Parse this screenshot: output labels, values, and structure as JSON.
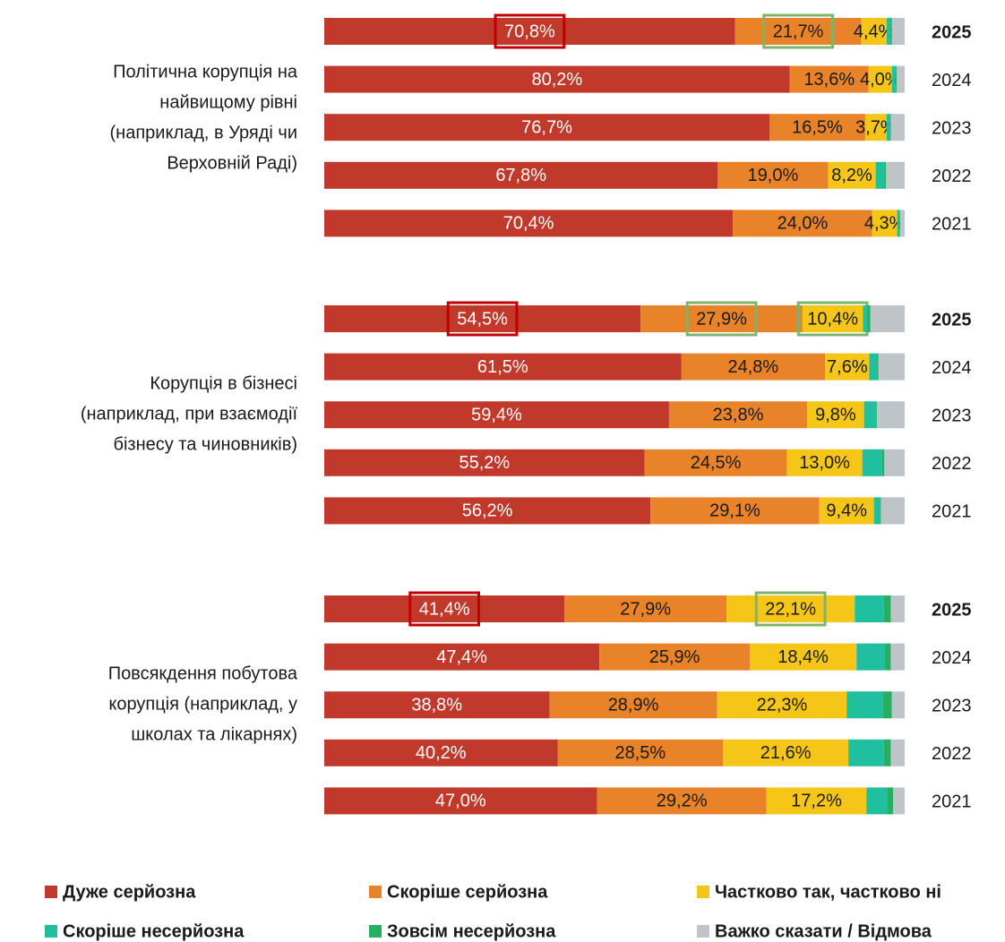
{
  "chart_data": {
    "type": "stacked-bar-horizontal",
    "groups": [
      {
        "label": [
          "Політична корупція на",
          "найвищому рівні",
          "(наприклад, в Уряді чи",
          "Верховній Раді)"
        ],
        "categories": [
          "2025",
          "2024",
          "2023",
          "2022",
          "2021"
        ]
      },
      {
        "label": [
          "Корупція в бізнесі",
          "(наприклад, при взаємодії",
          "бізнесу та чиновників)"
        ],
        "categories": [
          "2025",
          "2024",
          "2023",
          "2022",
          "2021"
        ]
      },
      {
        "label": [
          "Повсякдення побутова",
          "корупція (наприклад, у",
          "школах та лікарнях)"
        ],
        "categories": [
          "2025",
          "2024",
          "2023",
          "2022",
          "2021"
        ]
      }
    ],
    "xlim": [
      0,
      100
    ],
    "legend": "bottom",
    "series": [
      {
        "name": "Дуже серйозна",
        "color": "#c0392b",
        "values": [
          [
            70.8,
            80.2,
            76.7,
            67.8,
            70.4
          ],
          [
            54.5,
            61.5,
            59.4,
            55.2,
            56.2
          ],
          [
            41.4,
            47.4,
            38.8,
            40.2,
            47.0
          ]
        ],
        "value_labels": [
          [
            "70,8%",
            "80,2%",
            "76,7%",
            "67,8%",
            "70,4%"
          ],
          [
            "54,5%",
            "61,5%",
            "59,4%",
            "55,2%",
            "56,2%"
          ],
          [
            "41,4%",
            "47,4%",
            "38,8%",
            "40,2%",
            "47,0%"
          ]
        ]
      },
      {
        "name": "Скоріше серйозна",
        "color": "#e8832a",
        "values": [
          [
            21.7,
            13.6,
            16.5,
            19.0,
            24.0
          ],
          [
            27.9,
            24.8,
            23.8,
            24.5,
            29.1
          ],
          [
            27.9,
            25.9,
            28.9,
            28.5,
            29.2
          ]
        ],
        "value_labels": [
          [
            "21,7%",
            "13,6%",
            "16,5%",
            "19,0%",
            "24,0%"
          ],
          [
            "27,9%",
            "24,8%",
            "23,8%",
            "24,5%",
            "29,1%"
          ],
          [
            "27,9%",
            "25,9%",
            "28,9%",
            "28,5%",
            "29,2%"
          ]
        ]
      },
      {
        "name": "Частково так, частково ні",
        "color": "#f5c518",
        "values": [
          [
            4.4,
            4.0,
            3.7,
            8.2,
            4.3
          ],
          [
            10.4,
            7.6,
            9.8,
            13.0,
            9.4
          ],
          [
            22.1,
            18.4,
            22.3,
            21.6,
            17.2
          ]
        ],
        "value_labels": [
          [
            "4,4%",
            "4,0%",
            "3,7%",
            "8,2%",
            "4,3%"
          ],
          [
            "10,4%",
            "7,6%",
            "9,8%",
            "13,0%",
            "9,4%"
          ],
          [
            "22,1%",
            "18,4%",
            "22,3%",
            "21,6%",
            "17,2%"
          ]
        ]
      },
      {
        "name": "Скоріше несерйозна",
        "color": "#1fbf9f",
        "values": [
          [
            0.6,
            0.6,
            0.5,
            1.6,
            0.3
          ],
          [
            0.8,
            1.4,
            2.0,
            3.4,
            1.0
          ],
          [
            5.0,
            4.9,
            6.2,
            6.1,
            3.6
          ]
        ]
      },
      {
        "name": "Зовсім несерйозна",
        "color": "#27ae60",
        "values": [
          [
            0.3,
            0.2,
            0.2,
            0.2,
            0.2
          ],
          [
            0.5,
            0.2,
            0.2,
            0.4,
            0.2
          ],
          [
            1.2,
            1.0,
            1.6,
            1.2,
            1.0
          ]
        ]
      },
      {
        "name": "Важко сказати / Відмова",
        "color": "#bfc4c8",
        "values": [
          [
            2.2,
            1.4,
            2.4,
            3.2,
            0.8
          ],
          [
            5.9,
            4.5,
            4.8,
            3.5,
            4.1
          ],
          [
            2.4,
            2.4,
            2.2,
            2.4,
            2.0
          ]
        ]
      }
    ]
  }
}
